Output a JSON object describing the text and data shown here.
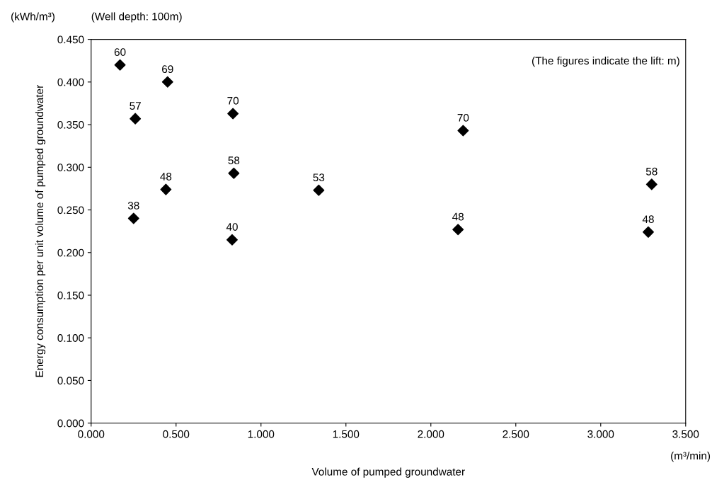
{
  "chart_data": {
    "type": "scatter",
    "xlabel": "Volume of pumped groundwater",
    "ylabel": "Energy consumption per unit volume of pumped groundwater",
    "annotations": [
      "(kWh/m³)",
      "(Well depth: 100m)",
      "(The figures indicate the lift: m)",
      "(m³/min)",
      {
        "text": "60",
        "x": 0.17,
        "y": 0.42
      },
      {
        "text": "69",
        "x": 0.45,
        "y": 0.4
      },
      {
        "text": "57",
        "x": 0.26,
        "y": 0.357
      },
      {
        "text": "38",
        "x": 0.25,
        "y": 0.24
      },
      {
        "text": "48",
        "x": 0.44,
        "y": 0.274
      },
      {
        "text": "70",
        "x": 0.835,
        "y": 0.363
      },
      {
        "text": "58",
        "x": 0.84,
        "y": 0.293
      },
      {
        "text": "40",
        "x": 0.83,
        "y": 0.215
      },
      {
        "text": "53",
        "x": 1.34,
        "y": 0.273
      },
      {
        "text": "70",
        "x": 2.19,
        "y": 0.343
      },
      {
        "text": "48",
        "x": 2.16,
        "y": 0.227
      },
      {
        "text": "58",
        "x": 3.3,
        "y": 0.28
      },
      {
        "text": "48",
        "x": 3.28,
        "y": 0.224
      }
    ],
    "x": [
      0.17,
      0.45,
      0.26,
      0.25,
      0.44,
      0.835,
      0.84,
      0.83,
      1.34,
      2.19,
      2.16,
      3.3,
      3.28
    ],
    "series": [
      {
        "color": "#000000",
        "values": [
          0.42,
          0.4,
          0.357,
          0.24,
          0.274,
          0.363,
          0.293,
          0.215,
          0.273,
          0.343,
          0.227,
          0.28,
          0.224
        ]
      }
    ],
    "marker": "diamond",
    "xlim": [
      0,
      3.5
    ],
    "xticks": [
      {
        "value": 0,
        "label": "0.000"
      },
      {
        "value": 0.5,
        "label": "0.500"
      },
      {
        "value": 1,
        "label": "1.000"
      },
      {
        "value": 1.5,
        "label": "1.500"
      },
      {
        "value": 2,
        "label": "2.000"
      },
      {
        "value": 2.5,
        "label": "2.500"
      },
      {
        "value": 3,
        "label": "3.000"
      },
      {
        "value": 3.5,
        "label": "3.500"
      }
    ],
    "ylim": [
      0,
      0.45
    ],
    "yticks": [
      {
        "value": 0,
        "label": "0.000"
      },
      {
        "value": 0.05,
        "label": "0.050"
      },
      {
        "value": 0.1,
        "label": "0.100"
      },
      {
        "value": 0.15,
        "label": "0.150"
      },
      {
        "value": 0.2,
        "label": "0.200"
      },
      {
        "value": 0.25,
        "label": "0.250"
      },
      {
        "value": 0.3,
        "label": "0.300"
      },
      {
        "value": 0.35,
        "label": "0.350"
      },
      {
        "value": 0.4,
        "label": "0.400"
      },
      {
        "value": 0.45,
        "label": "0.450"
      }
    ],
    "grid": false,
    "legend": false
  }
}
